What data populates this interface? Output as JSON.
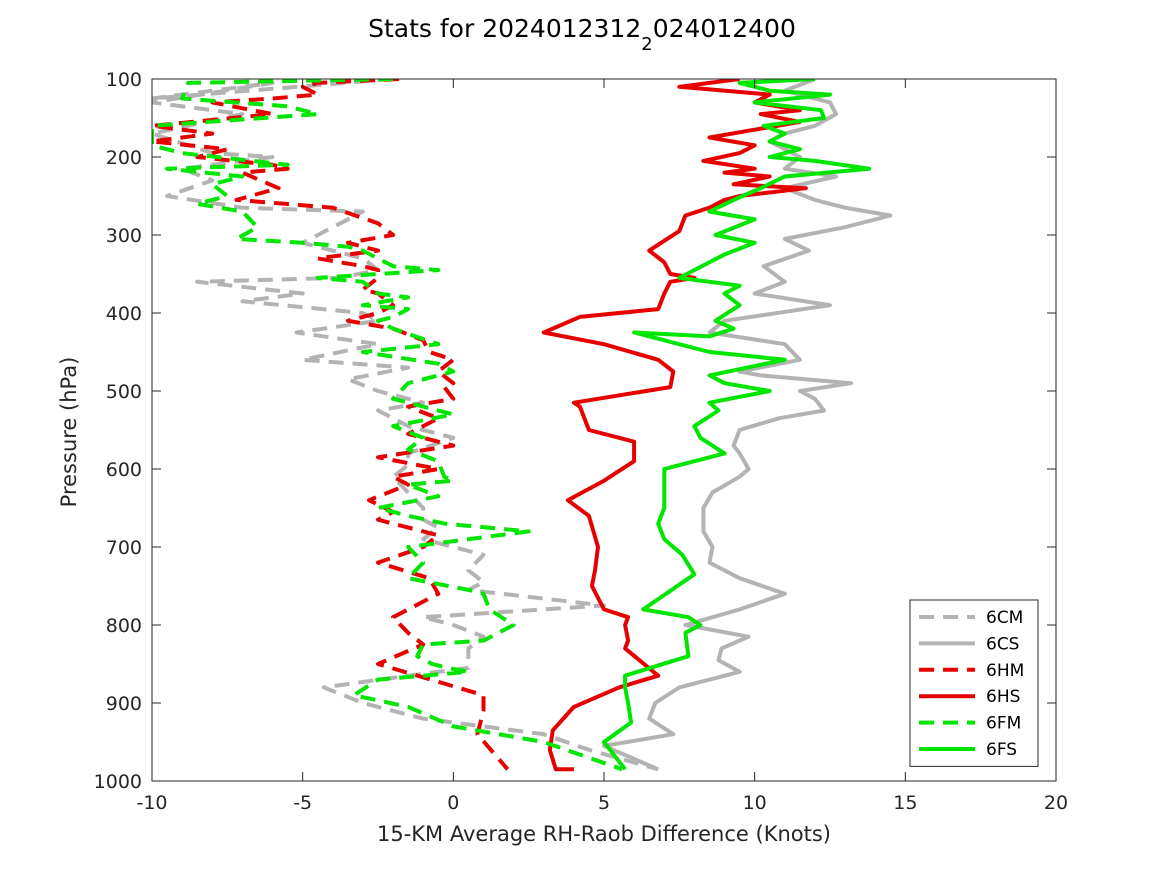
{
  "chart_data": {
    "type": "line",
    "title": "Stats for 2024012312",
    "title_sub": "2",
    "title_tail": "024012400",
    "xlabel": "15-KM Average RH-Raob Difference (Knots)",
    "ylabel": "Pressure (hPa)",
    "xlim": [
      -10,
      20
    ],
    "ylim": [
      100,
      1000
    ],
    "y_reversed": true,
    "xticks": [
      "-10",
      "-5",
      "0",
      "5",
      "10",
      "15",
      "20"
    ],
    "yticks": [
      "100",
      "200",
      "300",
      "400",
      "500",
      "600",
      "700",
      "800",
      "900",
      "1000"
    ],
    "grid": false,
    "legend_position": "bottom-right",
    "series": [
      {
        "name": "6CM",
        "color": "#b3b3b3",
        "dash": true,
        "x": [
          -2,
          -10,
          -8,
          -6,
          -10,
          -7,
          -10,
          -8,
          -6,
          -9,
          -8,
          -9.5,
          -7,
          -3,
          -4,
          -5,
          -3,
          -2.5,
          -3.8,
          -8.5,
          -5,
          -7,
          -3,
          -2.5,
          -5.2,
          -2.5,
          -5,
          -1.5,
          -3.5,
          -2.5,
          -1,
          -2.5,
          -1.5,
          0,
          -1.5,
          -1.5,
          -2,
          -1.5,
          -1,
          -1,
          -0.5,
          -1,
          1,
          0.5,
          1,
          0.5,
          5,
          -1,
          0,
          1,
          0.5,
          0.5,
          0.5,
          -1.5,
          -4.3,
          -3,
          -1,
          3,
          4.5,
          6.8
        ],
        "y": [
          100,
          125,
          115,
          105,
          130,
          145,
          170,
          195,
          200,
          215,
          230,
          250,
          265,
          270,
          290,
          310,
          330,
          345,
          355,
          360,
          375,
          385,
          400,
          410,
          425,
          440,
          460,
          470,
          485,
          500,
          515,
          525,
          545,
          560,
          580,
          595,
          610,
          630,
          650,
          665,
          675,
          690,
          710,
          730,
          745,
          755,
          775,
          790,
          800,
          815,
          830,
          845,
          855,
          865,
          880,
          900,
          920,
          940,
          960,
          985
        ]
      },
      {
        "name": "6CS",
        "color": "#b3b3b3",
        "dash": false,
        "x": [
          12,
          11,
          12.5,
          12.7,
          12,
          11,
          10.5,
          11.5,
          11,
          12.7,
          11,
          12,
          13,
          14.5,
          13,
          11,
          11.8,
          10.3,
          11,
          10,
          12.5,
          9,
          8.5,
          11,
          11.5,
          9.5,
          10.2,
          13.2,
          11.5,
          12,
          12.3,
          10.8,
          9.5,
          9.3,
          9.5,
          9.8,
          9.5,
          8.6,
          8.3,
          8.3,
          8.6,
          8.5,
          9.5,
          11,
          9.5,
          7.7,
          9.8,
          8.9,
          8.8,
          9.5,
          7.5,
          6.7,
          6.5,
          7.3,
          5,
          6.8
        ],
        "y": [
          100,
          115,
          130,
          145,
          160,
          170,
          180,
          200,
          215,
          225,
          240,
          255,
          265,
          275,
          290,
          305,
          320,
          340,
          360,
          375,
          390,
          410,
          425,
          440,
          460,
          475,
          480,
          490,
          500,
          510,
          525,
          535,
          550,
          570,
          580,
          600,
          610,
          630,
          650,
          680,
          700,
          720,
          740,
          760,
          780,
          800,
          815,
          830,
          845,
          860,
          880,
          900,
          920,
          940,
          955,
          985
        ]
      },
      {
        "name": "6HM",
        "color": "#e60000",
        "dash": true,
        "x": [
          -1.8,
          -4.5,
          -5,
          -4.5,
          -6,
          -8,
          -6,
          -10,
          -8,
          -10,
          -7.5,
          -8.5,
          -6,
          -5.5,
          -7,
          -5.8,
          -7.2,
          -4,
          -2.5,
          -2,
          -3.5,
          -2.5,
          -4.5,
          -3,
          -2.5,
          -2.5,
          -3,
          -2.5,
          -2,
          -2.5,
          -3.5,
          -2,
          -1,
          -0.8,
          0,
          -0.5,
          0,
          -0.3,
          0,
          -1.5,
          -0.5,
          -1.5,
          0,
          -2.5,
          -0.5,
          -2,
          -1.5,
          -2.8,
          -2,
          -2.5,
          -0.5,
          -1,
          -2.5,
          -0.8,
          -0.5,
          -1,
          -2,
          -1.5,
          -1,
          -2.5,
          1,
          1,
          0.8,
          1.8
        ],
        "y": [
          100,
          105,
          110,
          120,
          125,
          130,
          145,
          160,
          170,
          180,
          190,
          200,
          210,
          215,
          220,
          240,
          255,
          265,
          285,
          300,
          310,
          320,
          330,
          340,
          345,
          355,
          370,
          375,
          390,
          400,
          410,
          420,
          435,
          450,
          460,
          475,
          490,
          495,
          510,
          520,
          535,
          555,
          570,
          585,
          600,
          610,
          620,
          640,
          655,
          665,
          685,
          700,
          720,
          740,
          760,
          770,
          790,
          810,
          825,
          850,
          890,
          910,
          940,
          985
        ]
      },
      {
        "name": "6HS",
        "color": "#e60000",
        "dash": false,
        "x": [
          9.5,
          7.5,
          10.5,
          10,
          11.5,
          10.2,
          11.5,
          10,
          8.5,
          10,
          9.5,
          8.3,
          10,
          9,
          10.5,
          9.3,
          11.7,
          9.5,
          9,
          8.5,
          7.7,
          7.5,
          6.5,
          7,
          7.2,
          8,
          7.2,
          7,
          6.8,
          4.2,
          3,
          5,
          6.8,
          7.3,
          7.2,
          4,
          4.2,
          4.5,
          6,
          6,
          5,
          3.8,
          4.5,
          4.8,
          4.7,
          4.6,
          5,
          5.8,
          5.7,
          5.8,
          5.7,
          6.8,
          5.5,
          4,
          3.3,
          3.2,
          3.4,
          4
        ],
        "y": [
          100,
          110,
          120,
          130,
          140,
          145,
          155,
          165,
          175,
          185,
          195,
          205,
          215,
          220,
          225,
          235,
          240,
          250,
          255,
          265,
          275,
          295,
          320,
          335,
          350,
          355,
          360,
          375,
          395,
          405,
          425,
          440,
          460,
          475,
          495,
          515,
          520,
          550,
          565,
          590,
          615,
          640,
          660,
          700,
          730,
          750,
          780,
          790,
          800,
          820,
          830,
          865,
          880,
          905,
          935,
          960,
          985,
          985
        ]
      },
      {
        "name": "6FM",
        "color": "#00e600",
        "dash": true,
        "x": [
          -2,
          -8.8,
          -9,
          -5.5,
          -4.5,
          -10,
          -10,
          -9,
          -5.5,
          -9.5,
          -7,
          -8,
          -7.5,
          -8.5,
          -7,
          -6.5,
          -7.2,
          -5,
          -3.5,
          -3,
          -2.5,
          -2,
          -0.5,
          -2.5,
          -4.5,
          -3,
          -2.5,
          -1.5,
          -3,
          -1.5,
          -2,
          -2.5,
          -2,
          -0.5,
          -3,
          -0.5,
          0,
          -1.5,
          -2,
          0,
          -2,
          -1,
          -1.5,
          -0.5,
          -0.3,
          0,
          -1.5,
          -0.5,
          -2.5,
          -1.5,
          -0.3,
          2.5,
          -1.5,
          -1,
          -1.5,
          0.5,
          1,
          1.2,
          2,
          1,
          -1,
          -1.2,
          -0.7,
          -0.2,
          0.5,
          -2.5,
          -3.3,
          -1.5,
          0,
          3,
          5.6
        ],
        "y": [
          100,
          105,
          125,
          135,
          145,
          160,
          185,
          195,
          210,
          215,
          225,
          235,
          250,
          260,
          270,
          290,
          305,
          310,
          315,
          320,
          330,
          340,
          345,
          350,
          355,
          360,
          375,
          380,
          390,
          395,
          405,
          410,
          420,
          440,
          450,
          465,
          475,
          490,
          510,
          530,
          545,
          560,
          575,
          590,
          610,
          615,
          620,
          635,
          650,
          660,
          670,
          680,
          700,
          720,
          740,
          755,
          760,
          780,
          800,
          820,
          825,
          840,
          850,
          855,
          860,
          870,
          890,
          905,
          930,
          950,
          985
        ]
      },
      {
        "name": "6FS",
        "color": "#00e600",
        "dash": false,
        "x": [
          12,
          9.5,
          10.5,
          12.5,
          10,
          12.2,
          12.3,
          10.3,
          11,
          10.5,
          11.5,
          10.5,
          12,
          13.8,
          11,
          10.2,
          9.3,
          8.5,
          10,
          8.7,
          10,
          9,
          7.5,
          9.5,
          9,
          9.5,
          8.7,
          9.3,
          8.5,
          6,
          8.5,
          11,
          8.5,
          9,
          10.5,
          8.5,
          8.8,
          8,
          8.2,
          9,
          7,
          7,
          7,
          6.8,
          7,
          7.6,
          8,
          6.3,
          7.8,
          8.2,
          7.7,
          7.8,
          5.7,
          5.7,
          5.8,
          5.9,
          5,
          5.7
        ],
        "y": [
          100,
          105,
          115,
          120,
          130,
          140,
          150,
          160,
          170,
          180,
          190,
          200,
          205,
          215,
          225,
          240,
          255,
          270,
          280,
          300,
          310,
          325,
          355,
          365,
          375,
          390,
          410,
          420,
          430,
          425,
          450,
          460,
          480,
          490,
          500,
          515,
          525,
          545,
          560,
          580,
          600,
          620,
          650,
          670,
          690,
          710,
          735,
          780,
          790,
          800,
          810,
          840,
          865,
          880,
          900,
          925,
          950,
          985
        ]
      }
    ]
  }
}
